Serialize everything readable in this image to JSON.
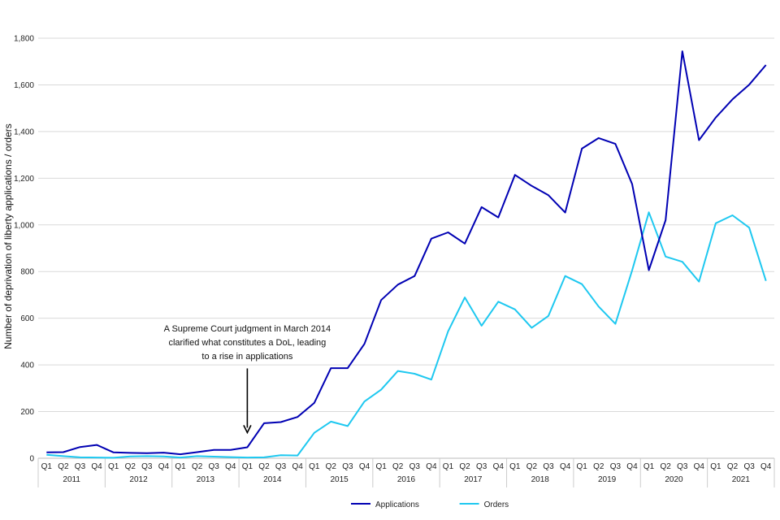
{
  "chart_data": {
    "type": "line",
    "title": "",
    "xlabel": "",
    "ylabel": "Number of deprivation of liberty applications / orders",
    "ylim": [
      0,
      1800
    ],
    "yticks": [
      0,
      200,
      400,
      600,
      800,
      1000,
      1200,
      1400,
      1600,
      1800
    ],
    "ytick_labels": [
      "0",
      "200",
      "400",
      "600",
      "800",
      "1,000",
      "1,200",
      "1,400",
      "1,600",
      "1,800"
    ],
    "grid": true,
    "legend_position": "bottom-center",
    "quarters": [
      "Q1",
      "Q2",
      "Q3",
      "Q4"
    ],
    "years": [
      "2011",
      "2012",
      "2013",
      "2014",
      "2015",
      "2016",
      "2017",
      "2018",
      "2019",
      "2020",
      "2021"
    ],
    "series": [
      {
        "name": "Applications",
        "color": "#0000b3",
        "values": [
          25,
          26,
          48,
          57,
          25,
          23,
          22,
          24,
          17,
          26,
          36,
          36,
          47,
          150,
          155,
          177,
          237,
          386,
          386,
          490,
          678,
          744,
          781,
          941,
          968,
          920,
          1076,
          1032,
          1214,
          1167,
          1127,
          1053,
          1327,
          1372,
          1347,
          1175,
          806,
          1020,
          1744,
          1363,
          1460,
          1538,
          1601,
          1685
        ]
      },
      {
        "name": "Orders",
        "color": "#1ec8f0",
        "values": [
          15,
          9,
          4,
          3,
          2,
          8,
          9,
          8,
          3,
          9,
          7,
          5,
          3,
          4,
          13,
          12,
          109,
          157,
          138,
          243,
          294,
          374,
          362,
          337,
          544,
          689,
          568,
          671,
          638,
          559,
          610,
          781,
          746,
          650,
          576,
          805,
          1054,
          864,
          842,
          757,
          1007,
          1041,
          988,
          760
        ]
      }
    ],
    "annotations": [
      {
        "lines": [
          "A Supreme Court judgment in March 2014",
          "clarified what constitutes a DoL, leading",
          "to a rise in applications"
        ],
        "arrow_to_quarter_index": 12,
        "arrow_to_value": 110,
        "arrow_from_value": 385
      }
    ]
  }
}
